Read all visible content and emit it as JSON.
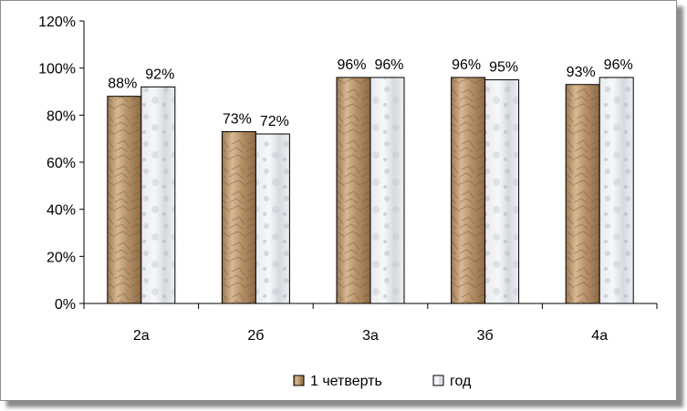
{
  "chart_data": {
    "type": "bar",
    "categories": [
      "2а",
      "2б",
      "3а",
      "3б",
      "4а"
    ],
    "series": [
      {
        "name": "1 четверть",
        "values": [
          88,
          73,
          96,
          96,
          93
        ],
        "labels": [
          "88%",
          "73%",
          "96%",
          "96%",
          "93%"
        ],
        "color": "#c8a682",
        "texture": "crumpled-paper-brown"
      },
      {
        "name": "год",
        "values": [
          92,
          72,
          96,
          95,
          96
        ],
        "labels": [
          "92%",
          "72%",
          "96%",
          "95%",
          "96%"
        ],
        "color": "#dde1e7",
        "texture": "white-marble"
      }
    ],
    "ylim": [
      0,
      120
    ],
    "yticks": [
      "0%",
      "20%",
      "40%",
      "60%",
      "80%",
      "100%",
      "120%"
    ],
    "grid": false,
    "legend_position": "bottom"
  }
}
